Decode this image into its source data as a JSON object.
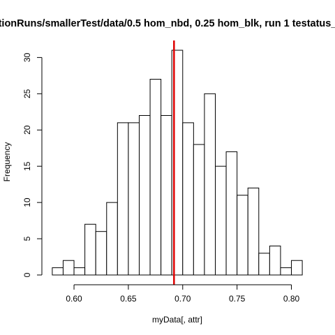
{
  "chart_data": {
    "type": "bar",
    "title": "tionRuns/smallerTest/data/0.5 hom_nbd, 0.25 hom_blk, run 1 testatus_",
    "xlabel": "myData[, attr]",
    "ylabel": "Frequency",
    "bin_width": 0.01,
    "bins": [
      {
        "x0": 0.58,
        "x1": 0.59,
        "count": 1
      },
      {
        "x0": 0.59,
        "x1": 0.6,
        "count": 2
      },
      {
        "x0": 0.6,
        "x1": 0.61,
        "count": 1
      },
      {
        "x0": 0.61,
        "x1": 0.62,
        "count": 7
      },
      {
        "x0": 0.62,
        "x1": 0.63,
        "count": 6
      },
      {
        "x0": 0.63,
        "x1": 0.64,
        "count": 10
      },
      {
        "x0": 0.64,
        "x1": 0.65,
        "count": 21
      },
      {
        "x0": 0.65,
        "x1": 0.66,
        "count": 21
      },
      {
        "x0": 0.66,
        "x1": 0.67,
        "count": 22
      },
      {
        "x0": 0.67,
        "x1": 0.68,
        "count": 27
      },
      {
        "x0": 0.68,
        "x1": 0.69,
        "count": 22
      },
      {
        "x0": 0.69,
        "x1": 0.7,
        "count": 31
      },
      {
        "x0": 0.7,
        "x1": 0.71,
        "count": 21
      },
      {
        "x0": 0.71,
        "x1": 0.72,
        "count": 18
      },
      {
        "x0": 0.72,
        "x1": 0.73,
        "count": 25
      },
      {
        "x0": 0.73,
        "x1": 0.74,
        "count": 15
      },
      {
        "x0": 0.74,
        "x1": 0.75,
        "count": 17
      },
      {
        "x0": 0.75,
        "x1": 0.76,
        "count": 11
      },
      {
        "x0": 0.76,
        "x1": 0.77,
        "count": 12
      },
      {
        "x0": 0.77,
        "x1": 0.78,
        "count": 3
      },
      {
        "x0": 0.78,
        "x1": 0.79,
        "count": 4
      },
      {
        "x0": 0.79,
        "x1": 0.8,
        "count": 1
      },
      {
        "x0": 0.8,
        "x1": 0.81,
        "count": 2
      }
    ],
    "xlim": [
      0.58,
      0.81
    ],
    "ylim": [
      0,
      31
    ],
    "x_ticks": [
      0.6,
      0.65,
      0.7,
      0.75,
      0.8
    ],
    "x_tick_labels": [
      "0.60",
      "0.65",
      "0.70",
      "0.75",
      "0.80"
    ],
    "y_ticks": [
      0,
      5,
      10,
      15,
      20,
      25,
      30
    ],
    "y_tick_labels": [
      "0",
      "5",
      "10",
      "15",
      "20",
      "25",
      "30"
    ],
    "reference_line": {
      "x": 0.692,
      "color": "#dd0000"
    },
    "grid": false,
    "bar_fill": "#ffffff",
    "bar_stroke": "#000000"
  }
}
